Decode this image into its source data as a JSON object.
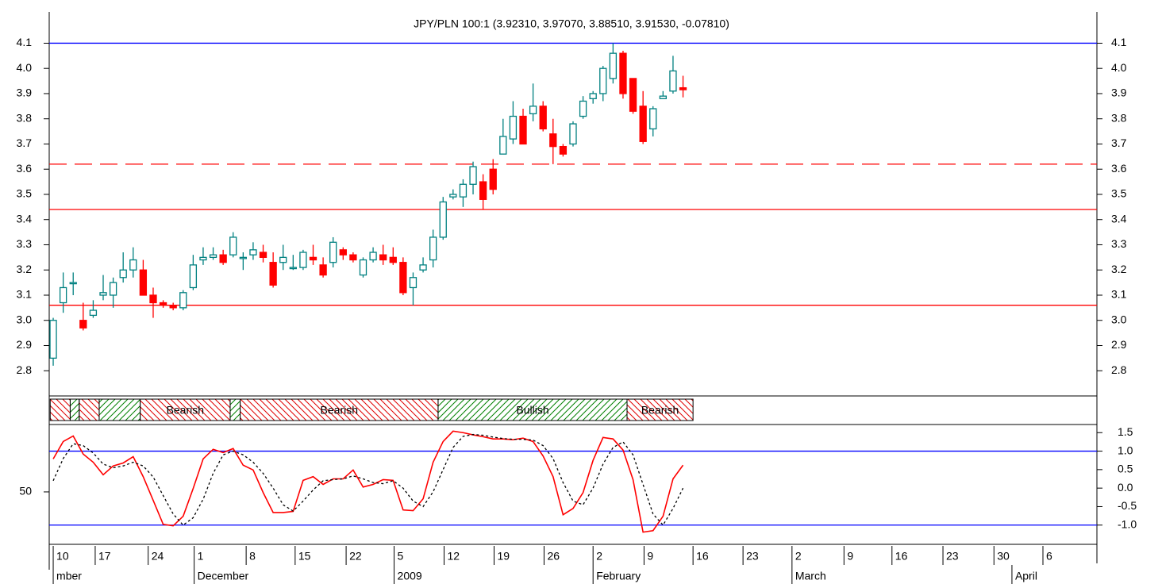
{
  "chart_data": [
    {
      "type": "candlestick",
      "title": "JPY/PLN 100:1 (3.92310, 3.97070, 3.88510, 3.91530, -0.07810)",
      "x": [
        0,
        1,
        2,
        3,
        4,
        5,
        6,
        7,
        8,
        9,
        10,
        11,
        12,
        13,
        14,
        15,
        16,
        17,
        18,
        19,
        20,
        21,
        22,
        23,
        24,
        25,
        26,
        27,
        28,
        29,
        30,
        31,
        32,
        33,
        34,
        35,
        36,
        37,
        38,
        39,
        40,
        41,
        42,
        43,
        44,
        45,
        46,
        47,
        48,
        49,
        50,
        51,
        52,
        53,
        54,
        55,
        56,
        57,
        58,
        59,
        60,
        61,
        62,
        63
      ],
      "open": [
        2.85,
        3.07,
        3.15,
        3.0,
        3.02,
        3.1,
        3.1,
        3.17,
        3.2,
        3.2,
        3.1,
        3.07,
        3.06,
        3.05,
        3.13,
        3.24,
        3.25,
        3.26,
        3.26,
        3.25,
        3.26,
        3.27,
        3.23,
        3.23,
        3.21,
        3.21,
        3.25,
        3.22,
        3.23,
        3.28,
        3.26,
        3.18,
        3.24,
        3.26,
        3.25,
        3.23,
        3.13,
        3.2,
        3.24,
        3.33,
        3.49,
        3.49,
        3.54,
        3.55,
        3.6,
        3.66,
        3.72,
        3.81,
        3.82,
        3.85,
        3.74,
        3.69,
        3.7,
        3.81,
        3.88,
        3.9,
        3.96,
        4.06,
        3.96,
        3.85,
        3.76,
        3.88,
        3.91,
        3.9231
      ],
      "high": [
        3.01,
        3.19,
        3.19,
        3.07,
        3.08,
        3.18,
        3.17,
        3.27,
        3.29,
        3.24,
        3.13,
        3.08,
        3.07,
        3.12,
        3.26,
        3.29,
        3.29,
        3.28,
        3.35,
        3.27,
        3.31,
        3.3,
        3.27,
        3.3,
        3.26,
        3.28,
        3.3,
        3.25,
        3.33,
        3.29,
        3.27,
        3.25,
        3.29,
        3.3,
        3.29,
        3.25,
        3.19,
        3.25,
        3.36,
        3.49,
        3.52,
        3.56,
        3.63,
        3.58,
        3.64,
        3.8,
        3.87,
        3.84,
        3.94,
        3.87,
        3.8,
        3.7,
        3.79,
        3.89,
        3.91,
        4.01,
        4.1,
        4.07,
        3.96,
        3.91,
        3.85,
        3.91,
        4.05,
        3.9707
      ],
      "low": [
        2.82,
        3.03,
        3.1,
        2.96,
        3.01,
        3.08,
        3.05,
        3.15,
        3.17,
        3.1,
        3.01,
        3.05,
        3.04,
        3.04,
        3.12,
        3.22,
        3.24,
        3.22,
        3.25,
        3.2,
        3.24,
        3.23,
        3.13,
        3.2,
        3.2,
        3.2,
        3.22,
        3.17,
        3.21,
        3.24,
        3.23,
        3.17,
        3.23,
        3.22,
        3.22,
        3.1,
        3.06,
        3.19,
        3.21,
        3.32,
        3.48,
        3.45,
        3.5,
        3.44,
        3.5,
        3.66,
        3.7,
        3.7,
        3.79,
        3.75,
        3.62,
        3.65,
        3.69,
        3.8,
        3.86,
        3.87,
        3.94,
        3.88,
        3.82,
        3.7,
        3.73,
        3.88,
        3.9,
        3.8851
      ],
      "close": [
        3.0,
        3.13,
        3.15,
        2.97,
        3.04,
        3.11,
        3.15,
        3.2,
        3.24,
        3.1,
        3.07,
        3.06,
        3.05,
        3.11,
        3.22,
        3.25,
        3.26,
        3.23,
        3.33,
        3.25,
        3.28,
        3.25,
        3.14,
        3.25,
        3.21,
        3.27,
        3.24,
        3.18,
        3.31,
        3.26,
        3.24,
        3.24,
        3.27,
        3.24,
        3.23,
        3.11,
        3.17,
        3.22,
        3.33,
        3.47,
        3.5,
        3.54,
        3.61,
        3.48,
        3.52,
        3.73,
        3.81,
        3.7,
        3.85,
        3.76,
        3.69,
        3.66,
        3.78,
        3.87,
        3.9,
        4.0,
        4.06,
        3.9,
        3.83,
        3.71,
        3.84,
        3.89,
        3.99,
        3.9153
      ],
      "up_color": "#008080",
      "down_color": "#ff0000",
      "xlim": [
        -0.4,
        104.4
      ],
      "ylim": [
        2.7,
        4.24
      ],
      "yticks": [
        2.8,
        2.9,
        {
          "value": 3,
          "label": "3.0"
        },
        3.1,
        3.2,
        3.3,
        3.4,
        3.5,
        3.6,
        3.7,
        3.8,
        3.9,
        {
          "value": 4,
          "label": "4.0"
        },
        4.1
      ],
      "hlines": [
        {
          "value": 4.1,
          "color": "#0000ff",
          "dash": false
        },
        {
          "value": 3.62,
          "color": "#ff0000",
          "dash": true
        },
        {
          "value": 3.44,
          "color": "#ff0000",
          "dash": false
        },
        {
          "value": 3.06,
          "color": "#ff0000",
          "dash": false
        }
      ],
      "trend_bands": [
        {
          "start": -0.3,
          "end": 1.7,
          "color": "#e00000",
          "hatch": "backward"
        },
        {
          "start": 1.7,
          "end": 2.6,
          "color": "#008000",
          "hatch": "forward"
        },
        {
          "start": 2.6,
          "end": 4.6,
          "color": "#e00000",
          "hatch": "backward"
        },
        {
          "start": 4.6,
          "end": 8.7,
          "color": "#008000",
          "hatch": "forward"
        },
        {
          "start": 8.7,
          "end": 17.7,
          "color": "#e00000",
          "hatch": "backward",
          "label": "Bearish"
        },
        {
          "start": 17.7,
          "end": 18.7,
          "color": "#008000",
          "hatch": "forward"
        },
        {
          "start": 18.7,
          "end": 38.5,
          "color": "#e00000",
          "hatch": "backward",
          "label": "Bearish"
        },
        {
          "start": 38.5,
          "end": 57.4,
          "color": "#008000",
          "hatch": "forward",
          "label": "Bullish"
        },
        {
          "start": 57.4,
          "end": 64.0,
          "color": "#e00000",
          "hatch": "backward",
          "label": "Bearish"
        }
      ]
    },
    {
      "type": "line",
      "x": [
        0,
        1,
        2,
        3,
        4,
        5,
        6,
        7,
        8,
        9,
        10,
        11,
        12,
        13,
        14,
        15,
        16,
        17,
        18,
        19,
        20,
        21,
        22,
        23,
        24,
        25,
        26,
        27,
        28,
        29,
        30,
        31,
        32,
        33,
        34,
        35,
        36,
        37,
        38,
        39,
        40,
        41,
        42,
        43,
        44,
        45,
        46,
        47,
        48,
        49,
        50,
        51,
        52,
        53,
        54,
        55,
        56,
        57,
        58,
        59,
        60,
        61,
        62,
        63
      ],
      "xlim": [
        -0.4,
        104.4
      ],
      "ylim": [
        15,
        95
      ],
      "yticks": [
        50
      ],
      "y2lim": [
        -1.52,
        1.72
      ],
      "y2ticks": [
        1.5,
        {
          "value": 1,
          "label": "1.0"
        },
        0.5,
        {
          "value": 0,
          "label": "0.0"
        },
        -0.5,
        {
          "value": -1,
          "label": "-1.0"
        }
      ],
      "series": [
        {
          "color": "#ff0000",
          "dash": false,
          "axis": "y2",
          "values": [
            0.79,
            1.26,
            1.41,
            0.92,
            0.7,
            0.36,
            0.6,
            0.68,
            0.85,
            0.31,
            -0.33,
            -0.98,
            -1.02,
            -0.76,
            -0.01,
            0.79,
            1.05,
            0.96,
            1.07,
            0.62,
            0.49,
            -0.12,
            -0.66,
            -0.66,
            -0.63,
            0.21,
            0.31,
            0.1,
            0.25,
            0.25,
            0.49,
            0.03,
            0.1,
            0.23,
            0.21,
            -0.59,
            -0.61,
            -0.29,
            0.7,
            1.26,
            1.54,
            1.5,
            1.44,
            1.39,
            1.33,
            1.33,
            1.31,
            1.35,
            1.26,
            0.87,
            0.31,
            -0.72,
            -0.55,
            -0.12,
            0.75,
            1.37,
            1.33,
            1.03,
            0.23,
            -1.19,
            -1.15,
            -0.76,
            0.25,
            0.62
          ]
        },
        {
          "color": "#000000",
          "dash": true,
          "axis": "y2",
          "values": [
            0.2,
            0.8,
            1.2,
            1.15,
            0.95,
            0.65,
            0.55,
            0.6,
            0.7,
            0.6,
            0.3,
            -0.2,
            -0.7,
            -1.0,
            -0.8,
            -0.3,
            0.4,
            0.9,
            1.0,
            0.9,
            0.7,
            0.4,
            0.0,
            -0.45,
            -0.62,
            -0.35,
            -0.05,
            0.2,
            0.23,
            0.25,
            0.33,
            0.25,
            0.15,
            0.12,
            0.2,
            0.0,
            -0.35,
            -0.5,
            -0.1,
            0.5,
            1.1,
            1.4,
            1.45,
            1.43,
            1.38,
            1.34,
            1.32,
            1.32,
            1.3,
            1.15,
            0.8,
            0.15,
            -0.35,
            -0.45,
            0.0,
            0.65,
            1.1,
            1.25,
            0.9,
            0.1,
            -0.7,
            -1.0,
            -0.55,
            0.0
          ]
        }
      ],
      "hlines": [
        {
          "value": 1,
          "color": "#0000ff",
          "axis": "y2"
        },
        {
          "value": -1,
          "color": "#0000ff",
          "axis": "y2"
        }
      ],
      "xticks": [
        {
          "value": 0,
          "label": "10"
        },
        {
          "value": 4.2,
          "label": "17"
        },
        {
          "value": 9.5,
          "label": "24"
        },
        {
          "value": 14.1,
          "label": "1"
        },
        {
          "value": 19.3,
          "label": "8"
        },
        {
          "value": 24.2,
          "label": "15"
        },
        {
          "value": 29.3,
          "label": "22"
        },
        {
          "value": 34.1,
          "label": "5"
        },
        {
          "value": 39.1,
          "label": "12"
        },
        {
          "value": 44.1,
          "label": "19"
        },
        {
          "value": 49.1,
          "label": "26"
        },
        {
          "value": 54.0,
          "label": "2"
        },
        {
          "value": 59.1,
          "label": "9"
        },
        {
          "value": 64.0,
          "label": "16"
        },
        {
          "value": 69.0,
          "label": "23"
        },
        {
          "value": 73.9,
          "label": "2"
        },
        {
          "value": 79.1,
          "label": "9"
        },
        {
          "value": 83.9,
          "label": "16"
        },
        {
          "value": 89.0,
          "label": "23"
        },
        {
          "value": 94.1,
          "label": "30"
        },
        {
          "value": 99.0,
          "label": "6"
        }
      ],
      "month_ticks": [
        {
          "value": 0,
          "label": "mber"
        },
        {
          "value": 14.1,
          "label": "December"
        },
        {
          "value": 34.1,
          "label": "2009"
        },
        {
          "value": 54.0,
          "label": "February"
        },
        {
          "value": 73.9,
          "label": "March"
        },
        {
          "value": 95.9,
          "label": "April"
        }
      ]
    }
  ]
}
